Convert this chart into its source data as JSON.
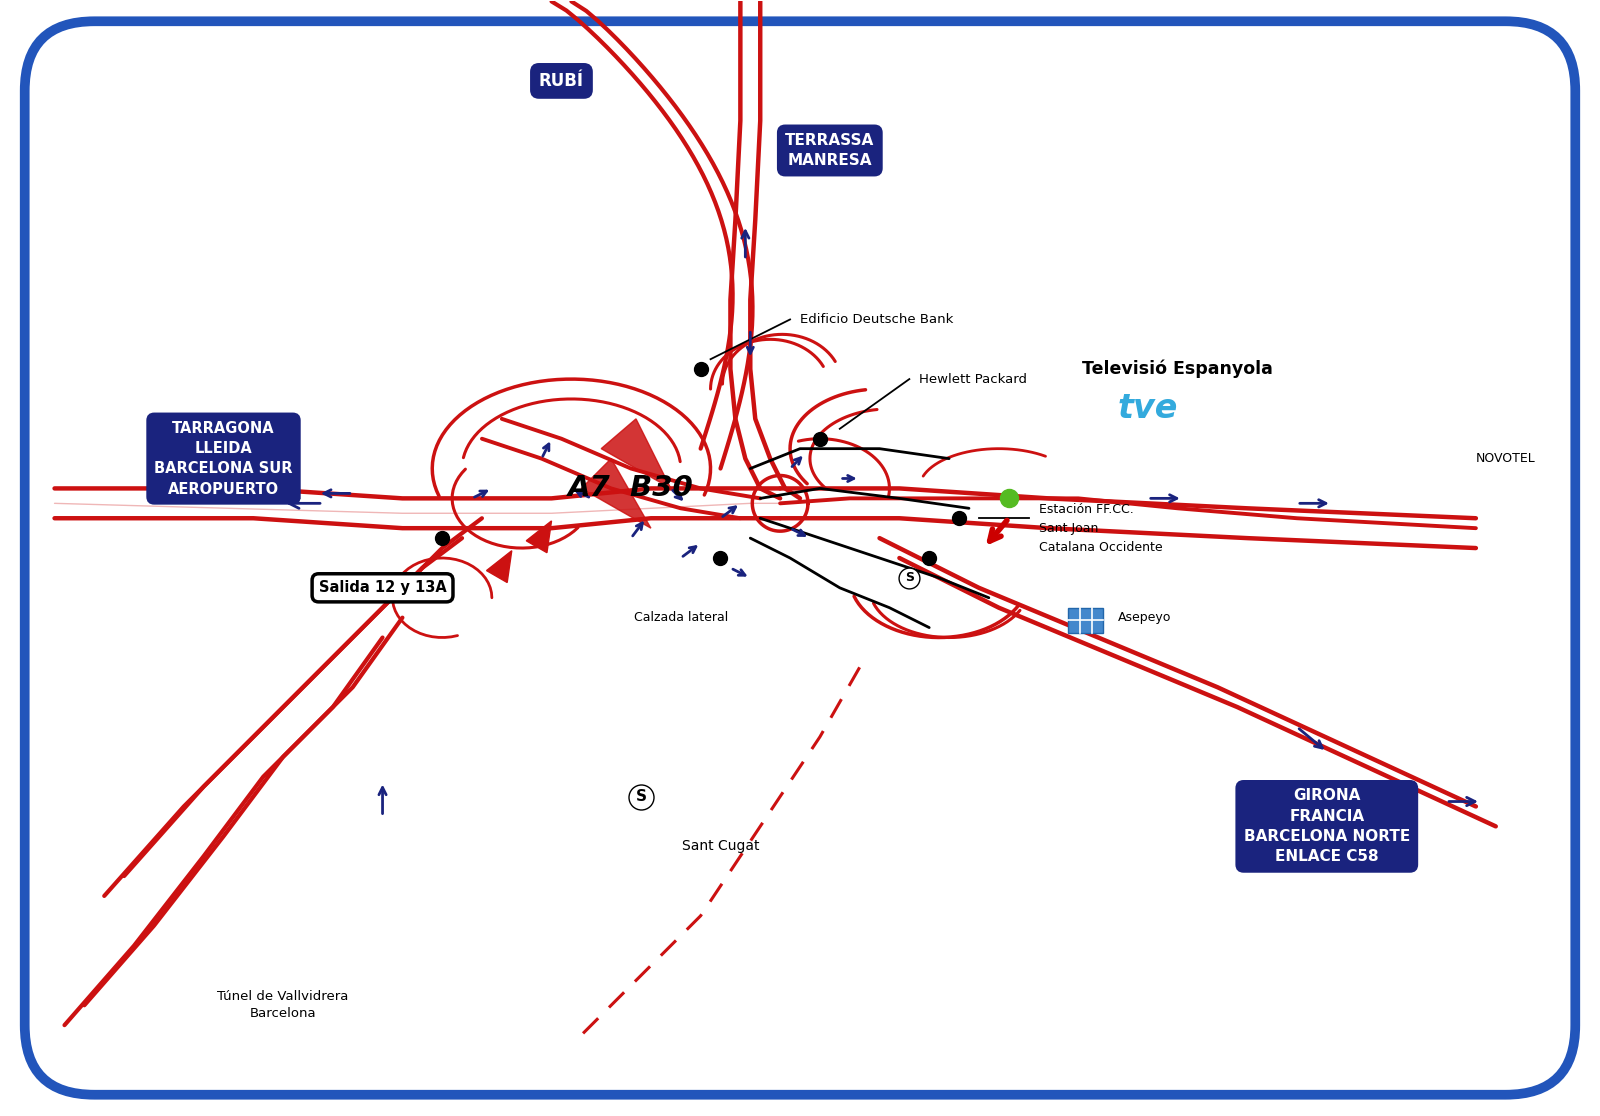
{
  "background_color": "#ffffff",
  "border_color": "#2255bb",
  "road_color": "#cc1111",
  "arrow_color": "#1a237e",
  "label_box_color": "#1a237e",
  "green_dot_color": "#55bb22",
  "tve_text_color": "#33aadd",
  "labels": {
    "rubi": "RUBÍ",
    "terrassa": "TERRASSA\nMANRESA",
    "tarragona": "TARRAGONA\nLLEIDA\nBARCELONA SUR\nAEROPUERTO",
    "a7b30": "A7  B30",
    "salida": "Salida 12 y 13A",
    "calzada": "Calzada lateral",
    "deutsche": "Edificio Deutsche Bank",
    "hewlett": "Hewlett Packard",
    "tve_title": "Televisió Espanyola",
    "tve_logo": "tve",
    "novotel": "NOVOTEL",
    "estacion": "Estación FF.CC.\nSant Joan\nCatalana Occidente",
    "asepeyo": "Asepeyo",
    "girona": "GIRONA\nFRANCIA\nBARCELONA NORTE\nENLACE C58",
    "sant_cugat": "Sant Cugat",
    "tunel": "Túnel de Vallvidrera\nBarcelona"
  },
  "figsize": [
    16.0,
    11.16
  ],
  "dpi": 100
}
